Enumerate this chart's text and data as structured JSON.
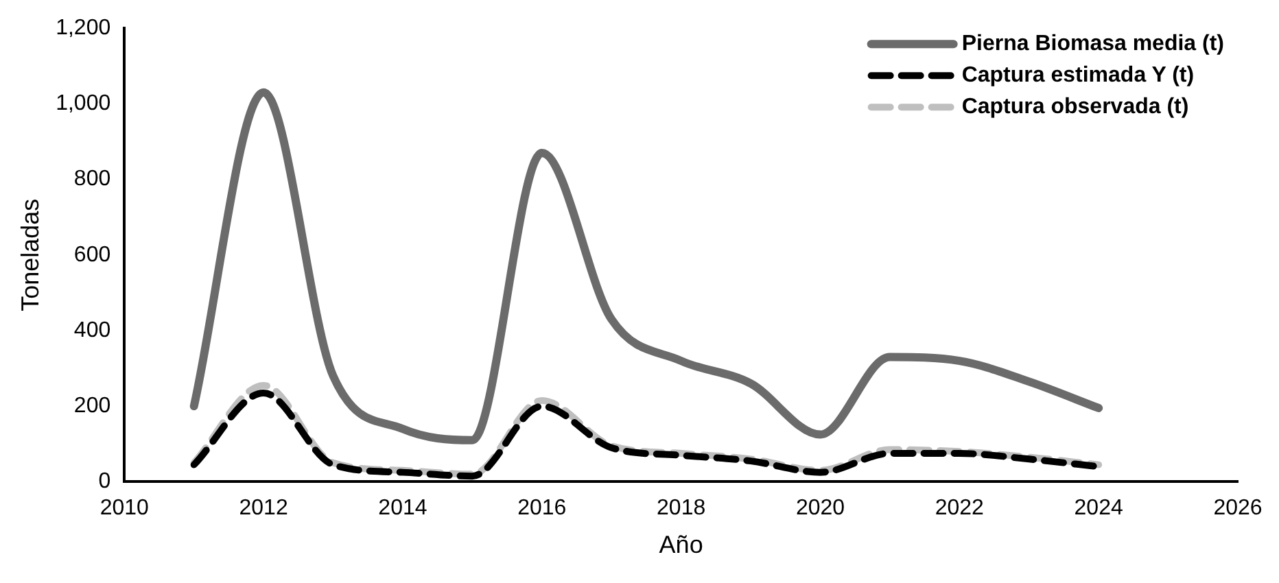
{
  "chart_data": {
    "type": "line",
    "xlabel": "Año",
    "ylabel": "Toneladas",
    "x": [
      2011,
      2012,
      2013,
      2014,
      2015,
      2016,
      2017,
      2018,
      2019,
      2020,
      2021,
      2022,
      2023,
      2024
    ],
    "series": [
      {
        "name": "Pierna Biomasa media (t)",
        "color": "#6b6b6b",
        "line_style": "solid",
        "values": [
          200,
          1030,
          280,
          140,
          110,
          870,
          430,
          320,
          260,
          125,
          330,
          320,
          265,
          195
        ]
      },
      {
        "name": "Captura estimada Y (t)",
        "color": "#000000",
        "line_style": "dashed",
        "values": [
          45,
          235,
          45,
          25,
          15,
          200,
          90,
          70,
          55,
          25,
          75,
          75,
          60,
          40
        ]
      },
      {
        "name": "Captura observada (t)",
        "color": "#bfbfbf",
        "line_style": "dashed",
        "values": [
          50,
          255,
          50,
          30,
          20,
          215,
          95,
          75,
          60,
          30,
          85,
          80,
          65,
          45
        ]
      }
    ],
    "xlim": [
      2010,
      2026
    ],
    "xticks": [
      2010,
      2012,
      2014,
      2016,
      2018,
      2020,
      2022,
      2024,
      2026
    ],
    "ylim": [
      0,
      1200
    ],
    "yticks": [
      0,
      200,
      400,
      600,
      800,
      {
        "value": 1000,
        "label": "1,000"
      },
      {
        "value": 1200,
        "label": "1,200"
      }
    ],
    "grid": false,
    "legend": "top right",
    "marker": "none"
  }
}
